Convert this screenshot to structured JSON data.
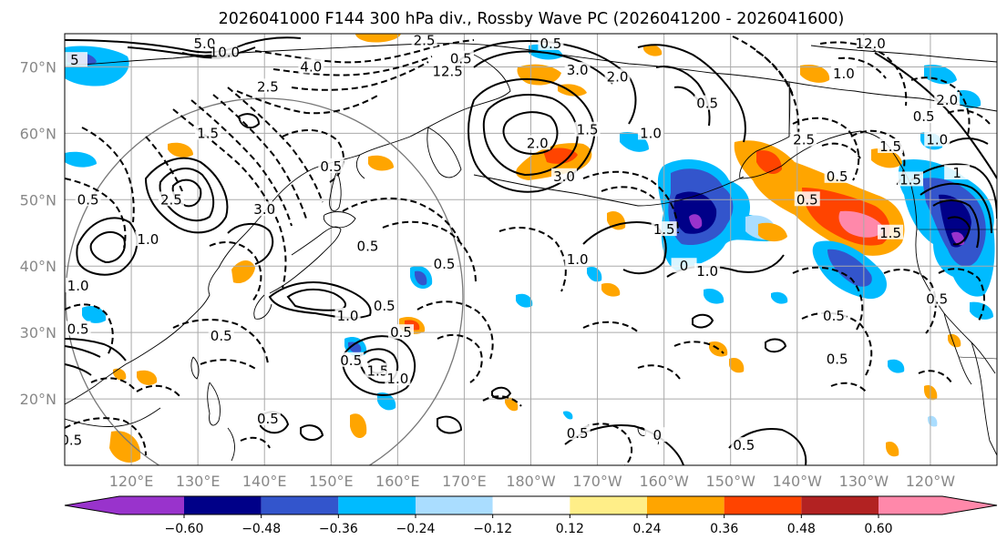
{
  "title": "2026041000 F144 300 hPa div., Rossby Wave PC (2026041200 - 2026041600)",
  "lat_ticks": [
    {
      "label": "70°N",
      "value": 70
    },
    {
      "label": "60°N",
      "value": 60
    },
    {
      "label": "50°N",
      "value": 50
    },
    {
      "label": "40°N",
      "value": 40
    },
    {
      "label": "30°N",
      "value": 30
    },
    {
      "label": "20°N",
      "value": 20
    }
  ],
  "lon_ticks": [
    {
      "label": "120°E",
      "value": 120
    },
    {
      "label": "130°E",
      "value": 130
    },
    {
      "label": "140°E",
      "value": 140
    },
    {
      "label": "150°E",
      "value": 150
    },
    {
      "label": "160°E",
      "value": 160
    },
    {
      "label": "170°E",
      "value": 170
    },
    {
      "label": "180°W",
      "value": 180
    },
    {
      "label": "170°W",
      "value": 190
    },
    {
      "label": "160°W",
      "value": 200
    },
    {
      "label": "150°W",
      "value": 210
    },
    {
      "label": "140°W",
      "value": 220
    },
    {
      "label": "130°W",
      "value": 230
    },
    {
      "label": "120°W",
      "value": 240
    }
  ],
  "colorbar": {
    "ticks": [
      "−0.60",
      "−0.48",
      "−0.36",
      "−0.24",
      "−0.12",
      "0.12",
      "0.24",
      "0.36",
      "0.48",
      "0.60"
    ],
    "colors": [
      "#9933cc",
      "#000088",
      "#3355cc",
      "#00bbff",
      "#aaddff",
      "#ffffff",
      "#ffee88",
      "#ffa500",
      "#ff4400",
      "#b22222",
      "#ff88aa"
    ]
  },
  "contour_labels": [
    {
      "text": "5.0",
      "lon": 131,
      "lat": 73.5
    },
    {
      "text": "10.0",
      "lon": 134,
      "lat": 72.2
    },
    {
      "text": "5",
      "lon": 111.5,
      "lat": 71
    },
    {
      "text": "4.0",
      "lon": 147,
      "lat": 70
    },
    {
      "text": "2.5",
      "lon": 140.5,
      "lat": 67
    },
    {
      "text": "2.5",
      "lon": 164,
      "lat": 74
    },
    {
      "text": "0.5",
      "lon": 169.5,
      "lat": 71.2
    },
    {
      "text": "12.5",
      "lon": 167.5,
      "lat": 69.3
    },
    {
      "text": "0.5",
      "lon": 183,
      "lat": 73.5
    },
    {
      "text": "3.0",
      "lon": 187,
      "lat": 69.5
    },
    {
      "text": "2.0",
      "lon": 193,
      "lat": 68.5
    },
    {
      "text": "0.5",
      "lon": 206.5,
      "lat": 64.5
    },
    {
      "text": "1.0",
      "lon": 227,
      "lat": 69
    },
    {
      "text": "12.0",
      "lon": 231,
      "lat": 73.5
    },
    {
      "text": "1.5",
      "lon": 188.5,
      "lat": 60.5
    },
    {
      "text": "1.0",
      "lon": 198,
      "lat": 60
    },
    {
      "text": "2.0",
      "lon": 181,
      "lat": 58.5
    },
    {
      "text": "3.0",
      "lon": 185,
      "lat": 53.5
    },
    {
      "text": "0.5",
      "lon": 150,
      "lat": 55
    },
    {
      "text": "1.5",
      "lon": 131.5,
      "lat": 60
    },
    {
      "text": "2.5",
      "lon": 126,
      "lat": 50
    },
    {
      "text": "3.0",
      "lon": 140,
      "lat": 48.5
    },
    {
      "text": "0.5",
      "lon": 113.5,
      "lat": 50
    },
    {
      "text": "1.0",
      "lon": 122.5,
      "lat": 44
    },
    {
      "text": "1.0",
      "lon": 112,
      "lat": 37
    },
    {
      "text": "0.5",
      "lon": 155.5,
      "lat": 43
    },
    {
      "text": "0.5",
      "lon": 167,
      "lat": 40.3
    },
    {
      "text": "1.0",
      "lon": 152.5,
      "lat": 32.5
    },
    {
      "text": "0.5",
      "lon": 158,
      "lat": 34
    },
    {
      "text": "0.5",
      "lon": 112,
      "lat": 30.5
    },
    {
      "text": "0.5",
      "lon": 133.5,
      "lat": 29.5
    },
    {
      "text": "0.5",
      "lon": 153,
      "lat": 25.8
    },
    {
      "text": "1.5",
      "lon": 157,
      "lat": 24.2
    },
    {
      "text": "1.0",
      "lon": 160,
      "lat": 23
    },
    {
      "text": "0.5",
      "lon": 160.5,
      "lat": 30
    },
    {
      "text": "0.5",
      "lon": 140.5,
      "lat": 17
    },
    {
      "text": "0.5",
      "lon": 111,
      "lat": 13.8
    },
    {
      "text": "0.5",
      "lon": 187,
      "lat": 14.8
    },
    {
      "text": "0",
      "lon": 199,
      "lat": 14.5
    },
    {
      "text": "0.5",
      "lon": 212,
      "lat": 13
    },
    {
      "text": "1.0",
      "lon": 187,
      "lat": 41
    },
    {
      "text": "1.5",
      "lon": 200,
      "lat": 45.5
    },
    {
      "text": "0",
      "lon": 203,
      "lat": 40
    },
    {
      "text": "1.0",
      "lon": 206.5,
      "lat": 39.2
    },
    {
      "text": "0.5",
      "lon": 225.5,
      "lat": 32.5
    },
    {
      "text": "0.5",
      "lon": 226,
      "lat": 26
    },
    {
      "text": "0.5",
      "lon": 221.5,
      "lat": 50
    },
    {
      "text": "2.5",
      "lon": 221,
      "lat": 59
    },
    {
      "text": "0.5",
      "lon": 226,
      "lat": 53.5
    },
    {
      "text": "1.5",
      "lon": 234,
      "lat": 58
    },
    {
      "text": "1.0",
      "lon": 241,
      "lat": 59
    },
    {
      "text": "0.5",
      "lon": 239,
      "lat": 62.5
    },
    {
      "text": "1.5",
      "lon": 237,
      "lat": 53
    },
    {
      "text": "2.0",
      "lon": 242.5,
      "lat": 65
    },
    {
      "text": "1",
      "lon": 244,
      "lat": 54
    },
    {
      "text": "0.5",
      "lon": 241,
      "lat": 35
    },
    {
      "text": "1.5",
      "lon": 234,
      "lat": 45
    }
  ]
}
